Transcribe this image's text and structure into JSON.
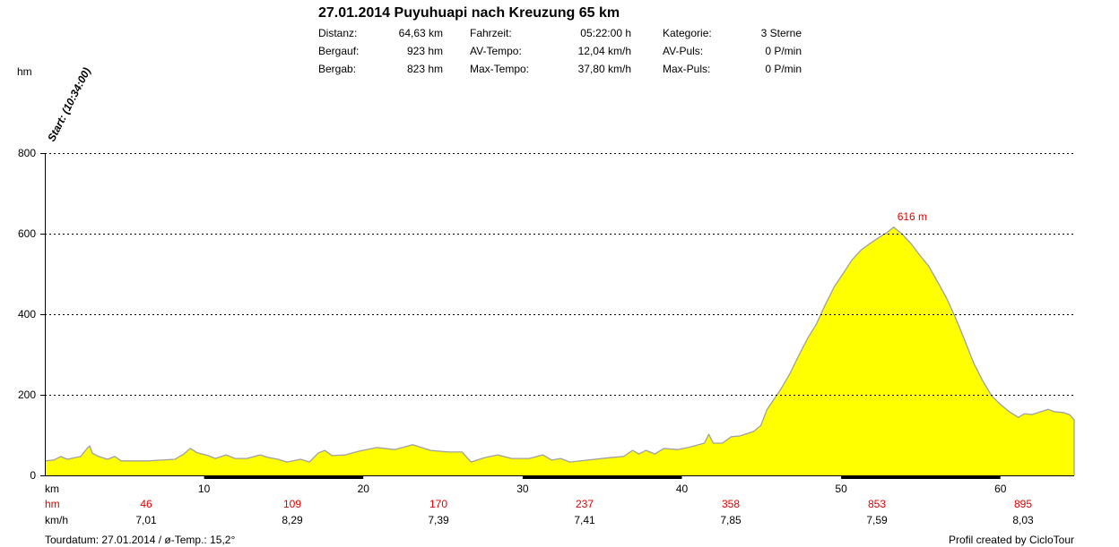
{
  "header": {
    "stats": {
      "distance": {
        "label": "Distanz:",
        "value": "64,63 km"
      },
      "duration": {
        "label": "Fahrzeit:",
        "value": "05:22:00 h"
      },
      "category": {
        "label": "Kategorie:",
        "value": "3 Sterne"
      },
      "ascent": {
        "label": "Bergauf:",
        "value": "923 hm"
      },
      "avg_speed": {
        "label": "AV-Tempo:",
        "value": "12,04 km/h"
      },
      "avg_pulse": {
        "label": "AV-Puls:",
        "value": "0 P/min"
      },
      "descent": {
        "label": "Bergab:",
        "value": "823 hm"
      },
      "max_speed": {
        "label": "Max-Tempo:",
        "value": "37,80 km/h"
      },
      "max_pulse": {
        "label": "Max-Puls:",
        "value": "0 P/min"
      }
    }
  },
  "chart_data": {
    "type": "area",
    "title": "27.01.2014 Puyuhuapi nach Kreuzung 65 km",
    "xlabel": "km",
    "ylabel": "hm",
    "xlim": [
      0,
      64.63
    ],
    "ylim": [
      0,
      800
    ],
    "xticks": [
      10,
      20,
      30,
      40,
      50,
      60
    ],
    "yticks": [
      0,
      200,
      400,
      600,
      800
    ],
    "grid": true,
    "start_label": "Start: (10:34:00)",
    "annotations": [
      {
        "text": "616 m",
        "x": 53.3,
        "y": 616
      }
    ],
    "series": [
      {
        "x": [
          0,
          0.56,
          1.01,
          1.41,
          2.25,
          2.65,
          2.82,
          2.99,
          3.38,
          3.94,
          4.39,
          4.79,
          5.63,
          6.48,
          7.32,
          8.17,
          8.73,
          9.13,
          9.58,
          10.25,
          10.7,
          11.38,
          11.94,
          12.68,
          13.52,
          14.08,
          14.65,
          15.21,
          16.06,
          16.62,
          17.18,
          17.58,
          18.03,
          18.87,
          19.72,
          20.85,
          21.97,
          23.1,
          24.23,
          25.35,
          26.2,
          26.76,
          27.61,
          28.45,
          29.3,
          30.42,
          31.27,
          31.83,
          32.39,
          32.96,
          34.08,
          35.49,
          36.34,
          36.9,
          37.3,
          37.75,
          38.31,
          38.87,
          39.72,
          40.56,
          41.41,
          41.69,
          41.97,
          42.54,
          43.1,
          43.66,
          44.51,
          44.96,
          45.35,
          45.75,
          46.2,
          46.76,
          47.32,
          47.89,
          48.45,
          49.01,
          49.58,
          50.14,
          50.7,
          51.27,
          51.83,
          52.39,
          52.85,
          53.3,
          53.8,
          54.37,
          54.93,
          55.49,
          56.06,
          56.62,
          57.18,
          57.75,
          58.31,
          58.87,
          59.44,
          60,
          60.56,
          61.13,
          61.52,
          61.97,
          62.54,
          62.99,
          63.38,
          63.94,
          64.34,
          64.63
        ],
        "y": [
          36,
          38,
          47,
          40,
          47,
          67,
          73,
          55,
          47,
          40,
          47,
          36,
          36,
          36,
          38,
          40,
          53,
          67,
          56,
          49,
          42,
          51,
          42,
          42,
          51,
          44,
          40,
          33,
          40,
          33,
          56,
          62,
          49,
          51,
          60,
          69,
          64,
          76,
          62,
          58,
          58,
          33,
          44,
          51,
          42,
          42,
          51,
          38,
          42,
          33,
          38,
          44,
          47,
          62,
          53,
          62,
          53,
          67,
          64,
          71,
          80,
          102,
          80,
          80,
          96,
          98,
          109,
          124,
          164,
          187,
          213,
          251,
          296,
          340,
          376,
          424,
          469,
          502,
          536,
          560,
          576,
          591,
          602,
          616,
          600,
          576,
          547,
          520,
          480,
          440,
          391,
          336,
          280,
          236,
          198,
          176,
          158,
          144,
          153,
          151,
          158,
          164,
          158,
          156,
          151,
          138
        ]
      }
    ],
    "colors": {
      "fill": "#ffff00",
      "line": "#a0a0a0",
      "grid": "#000000",
      "axis": "#000000",
      "accent": "#e00000"
    }
  },
  "segments": {
    "hm": {
      "label": "hm",
      "values": [
        "46",
        "109",
        "170",
        "237",
        "358",
        "853",
        "895"
      ]
    },
    "speed": {
      "label": "km/h",
      "values": [
        "7,01",
        "8,29",
        "7,39",
        "7,41",
        "7,85",
        "7,59",
        "8,03"
      ]
    }
  },
  "footer": {
    "tour_info": "Tourdatum: 27.01.2014 / ø-Temp.: 15,2°",
    "credit": "Profil created by CicloTour"
  }
}
